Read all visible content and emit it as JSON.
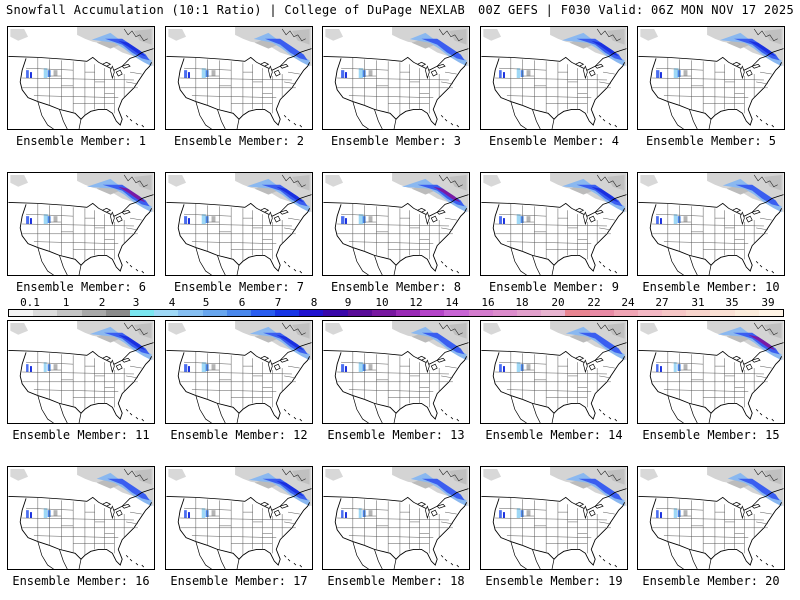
{
  "header": {
    "title": "Snowfall Accumulation (10:1 Ratio) | College of DuPage NEXLAB",
    "valid": "00Z GEFS | F030 Valid: 06Z MON NOV 17 2025"
  },
  "members": [
    {
      "label": "Ensemble Member: 1",
      "ne": 0.75,
      "west": 0.6
    },
    {
      "label": "Ensemble Member: 2",
      "ne": 0.55,
      "west": 0.7
    },
    {
      "label": "Ensemble Member: 3",
      "ne": 0.6,
      "west": 0.75
    },
    {
      "label": "Ensemble Member: 4",
      "ne": 0.9,
      "west": 0.55
    },
    {
      "label": "Ensemble Member: 5",
      "ne": 0.85,
      "west": 0.8
    },
    {
      "label": "Ensemble Member: 6",
      "ne": 1.0,
      "west": 0.7
    },
    {
      "label": "Ensemble Member: 7",
      "ne": 0.9,
      "west": 0.7
    },
    {
      "label": "Ensemble Member: 8",
      "ne": 1.0,
      "west": 0.8
    },
    {
      "label": "Ensemble Member: 9",
      "ne": 0.9,
      "west": 0.65
    },
    {
      "label": "Ensemble Member: 10",
      "ne": 0.7,
      "west": 0.6
    },
    {
      "label": "Ensemble Member: 11",
      "ne": 0.85,
      "west": 0.5
    },
    {
      "label": "Ensemble Member: 12",
      "ne": 0.75,
      "west": 0.75
    },
    {
      "label": "Ensemble Member: 13",
      "ne": 0.55,
      "west": 0.7
    },
    {
      "label": "Ensemble Member: 14",
      "ne": 0.7,
      "west": 0.6
    },
    {
      "label": "Ensemble Member: 15",
      "ne": 0.95,
      "west": 0.5
    },
    {
      "label": "Ensemble Member: 16",
      "ne": 0.5,
      "west": 0.6
    },
    {
      "label": "Ensemble Member: 17",
      "ne": 0.8,
      "west": 0.6
    },
    {
      "label": "Ensemble Member: 18",
      "ne": 0.55,
      "west": 0.5
    },
    {
      "label": "Ensemble Member: 19",
      "ne": 0.7,
      "west": 0.6
    },
    {
      "label": "Ensemble Member: 20",
      "ne": 0.45,
      "west": 0.55
    }
  ],
  "colorbar": {
    "labels": [
      "0.1",
      "1",
      "2",
      "3",
      "4",
      "5",
      "6",
      "7",
      "8",
      "9",
      "10",
      "12",
      "14",
      "16",
      "18",
      "20",
      "22",
      "24",
      "27",
      "31",
      "35",
      "39"
    ],
    "colors": [
      "#f4f4f4",
      "#dcdcdc",
      "#c4c4c4",
      "#a8a8a8",
      "#8c8c8c",
      "#7ae6f0",
      "#9ed8f6",
      "#86bff2",
      "#68a6ee",
      "#4a88ec",
      "#2a5ef0",
      "#1836e6",
      "#2012d0",
      "#3a08aa",
      "#5a0c98",
      "#7818a0",
      "#9a2ab6",
      "#b444c8",
      "#c864d4",
      "#d47cce",
      "#dc8ccc",
      "#e2a0cc",
      "#e8b4d0",
      "#e88490",
      "#e88aa4",
      "#f0a4b4",
      "#f4b8c4",
      "#f6c6c6",
      "#f8d4cc",
      "#fae0d4",
      "#fcecdc",
      "#fff4e6"
    ]
  }
}
